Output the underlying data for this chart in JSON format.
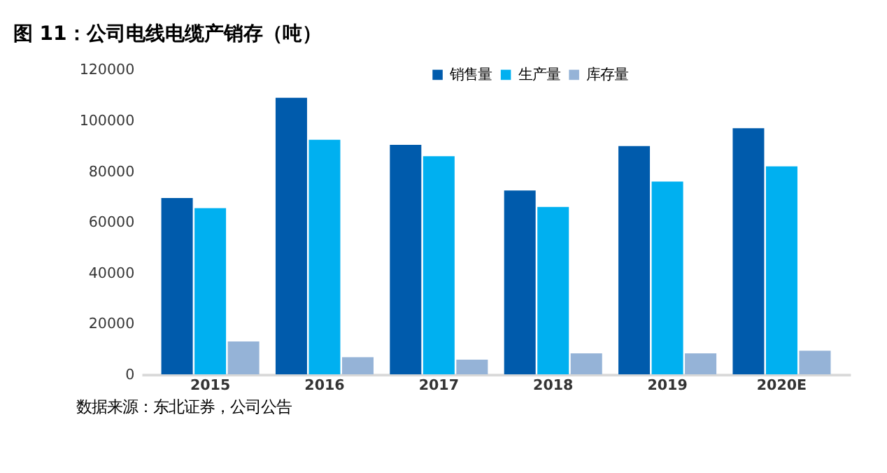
{
  "chart_data": {
    "type": "bar",
    "title": "图 11：公司电线电缆产销存（吨）",
    "annotations": [
      "数据来源：东北证券，公司公告"
    ],
    "categories": [
      "2015",
      "2016",
      "2017",
      "2018",
      "2019",
      "2020E"
    ],
    "series": [
      {
        "name": "销售量",
        "color": "#005bac",
        "values": [
          69500,
          109000,
          90500,
          72500,
          90000,
          97000
        ]
      },
      {
        "name": "生产量",
        "color": "#00b0f0",
        "values": [
          65500,
          92500,
          86000,
          66000,
          76000,
          82000
        ]
      },
      {
        "name": "库存量",
        "color": "#95b3d7",
        "values": [
          13000,
          6800,
          5800,
          8300,
          8300,
          9300
        ]
      }
    ],
    "ylim": [
      0,
      120000
    ],
    "yticks": [
      0,
      20000,
      40000,
      60000,
      80000,
      100000,
      120000
    ],
    "grid": false,
    "legend": "top"
  }
}
